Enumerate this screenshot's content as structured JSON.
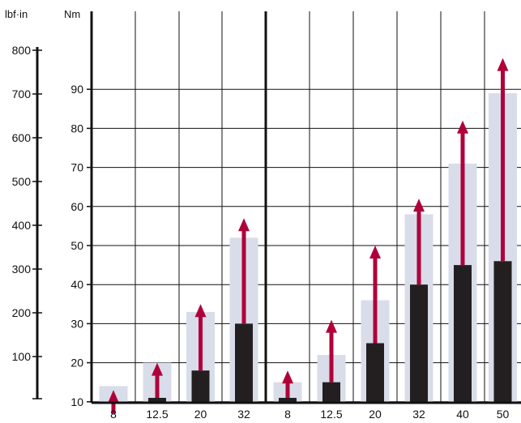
{
  "chart_data": {
    "type": "bar",
    "units": {
      "left": "lbf·in",
      "right": "Nm"
    },
    "ylim_nm": [
      0,
      100
    ],
    "ylim_lbfin": [
      0,
      885
    ],
    "nm_ticks": [
      10,
      20,
      30,
      40,
      50,
      60,
      70,
      80,
      90
    ],
    "lbfin_ticks": [
      100,
      200,
      300,
      400,
      500,
      600,
      700,
      800
    ],
    "panels": [
      {
        "categories": [
          "8",
          "12.5",
          "20",
          "32"
        ],
        "series": [
          {
            "values": [
              14,
              20,
              33,
              52
            ]
          },
          {
            "values": [
              7,
              11,
              18,
              30
            ]
          },
          {
            "values": [
              13,
              20,
              35,
              57
            ]
          }
        ]
      },
      {
        "categories": [
          "8",
          "12.5",
          "20",
          "32",
          "40",
          "50"
        ],
        "series": [
          {
            "values": [
              15,
              22,
              36,
              58,
              71,
              89
            ]
          },
          {
            "values": [
              11,
              15,
              25,
              40,
              45,
              46
            ]
          },
          {
            "values": [
              18,
              31,
              50,
              62,
              82,
              98
            ]
          }
        ]
      }
    ],
    "colors": {
      "light_bar": "#d8dde9",
      "dark_bar": "#231f20",
      "arrow": "#b0003a",
      "axis": "#111111"
    }
  }
}
